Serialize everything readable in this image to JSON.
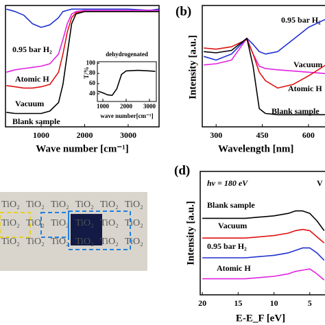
{
  "chart_data": [
    {
      "type": "line",
      "xlabel": "Wave number [cm⁻¹]",
      "x": [
        200,
        400,
        600,
        800,
        1000,
        1200,
        1400,
        1500,
        1600,
        1700,
        1800,
        2000,
        2500,
        3000,
        3500,
        3700
      ],
      "xlim": [
        180,
        3710
      ],
      "ylim": [
        0,
        100
      ],
      "xticks": [
        1000,
        2000,
        3000
      ],
      "series": [
        {
          "name": "0.95 bar H₂",
          "color": "#1f2fd0",
          "values": [
            97,
            95,
            92,
            85,
            82,
            84,
            90,
            95,
            96,
            97,
            97,
            97,
            97,
            97,
            96,
            97
          ]
        },
        {
          "name": "Atomic H",
          "color": "#e020e0",
          "values": [
            45,
            47,
            48,
            49,
            50,
            52,
            60,
            72,
            85,
            93,
            95,
            96,
            96,
            96,
            96,
            96
          ]
        },
        {
          "name": "Vacuum",
          "color": "#e01010",
          "values": [
            34,
            33,
            32,
            32,
            33,
            35,
            45,
            60,
            78,
            90,
            94,
            95,
            95,
            95,
            95,
            95
          ]
        },
        {
          "name": "Blank sample",
          "color": "#000000",
          "values": [
            12,
            11,
            11,
            11,
            11,
            13,
            20,
            35,
            60,
            85,
            93,
            95,
            95,
            95,
            95,
            95
          ]
        }
      ]
    },
    {
      "type": "line",
      "title": "dehydrogenated",
      "xlabel": "wave number[cm⁻¹]",
      "ylabel": "T/%",
      "x": [
        800,
        1000,
        1200,
        1400,
        1600,
        1800,
        2000,
        2500,
        3000,
        3250
      ],
      "xlim": [
        765,
        3294
      ],
      "ylim": [
        25,
        103
      ],
      "xticks": [
        1000,
        2000,
        3000
      ],
      "yticks": [
        40,
        60,
        80,
        100
      ],
      "series": [
        {
          "color": "#000000",
          "values": [
            45,
            42,
            38,
            37,
            50,
            78,
            85,
            86,
            85,
            84
          ]
        }
      ]
    },
    {
      "type": "line",
      "title": "(b)",
      "xlabel": "Wavelength [nm]",
      "ylabel": "Intensity [a.u.]",
      "x": [
        260,
        300,
        350,
        400,
        420,
        440,
        460,
        500,
        550,
        600,
        650,
        667
      ],
      "xlim": [
        255,
        667
      ],
      "ylim": [
        0,
        100
      ],
      "xticks": [
        300,
        450,
        600
      ],
      "series": [
        {
          "name": "0.95 bar H₂",
          "color": "#1f2fd0",
          "values": [
            58,
            55,
            60,
            73,
            68,
            62,
            60,
            62,
            72,
            82,
            88,
            90
          ]
        },
        {
          "name": "Vacuum",
          "color": "#e020e0",
          "values": [
            51,
            52,
            55,
            73,
            60,
            50,
            48,
            47,
            46,
            45,
            44,
            43
          ]
        },
        {
          "name": "Atomic H",
          "color": "#e01010",
          "values": [
            65,
            64,
            66,
            72,
            60,
            45,
            38,
            32,
            35,
            42,
            50,
            53
          ]
        },
        {
          "name": "Blank sample",
          "color": "#000000",
          "values": [
            62,
            61,
            63,
            73,
            50,
            15,
            11,
            10,
            10,
            10,
            10,
            10
          ]
        }
      ]
    },
    {
      "type": "line",
      "title": "(d)",
      "annotation": "hν = 180 eV",
      "annotation2": "V",
      "xlabel": "E-E_F [eV]",
      "ylabel": "Intensity [a.u.]",
      "x": [
        20,
        18,
        16,
        14,
        12,
        10,
        8,
        7,
        6,
        5,
        4,
        3
      ],
      "xlim": [
        20.3,
        2.3
      ],
      "ylim": [
        0,
        100
      ],
      "xticks": [
        20,
        15,
        10,
        5
      ],
      "series": [
        {
          "name": "Blank sample",
          "color": "#000000",
          "values": [
            62,
            62,
            62,
            62,
            63,
            64,
            66,
            68,
            68,
            66,
            60,
            52
          ]
        },
        {
          "name": "Vacuum",
          "color": "#e01010",
          "values": [
            46,
            46,
            46,
            46,
            47,
            48,
            50,
            52,
            53,
            52,
            47,
            42
          ]
        },
        {
          "name": "0.95 bar H₂",
          "color": "#1f2fd0",
          "values": [
            30,
            30,
            30,
            30,
            31,
            32,
            34,
            36,
            38,
            38,
            34,
            28
          ]
        },
        {
          "name": "Atomic H",
          "color": "#e020e0",
          "values": [
            13,
            13,
            13,
            13,
            14,
            15,
            17,
            19,
            20,
            21,
            17,
            12
          ]
        }
      ]
    }
  ],
  "photo": {
    "rows": [
      [
        "TiO₂",
        "TiO₂",
        "TiO₂",
        "TiO₂",
        "TiO₂",
        "TiO₂"
      ],
      [
        "TiO₂",
        "TiO₂",
        "TiO₂",
        "TiO₂",
        "TiO₂",
        "TiO₂"
      ],
      [
        "TiO₂",
        "TiO₂",
        "TiO₂",
        "TiO₂",
        "TiO₂",
        "TiO₂"
      ]
    ]
  }
}
